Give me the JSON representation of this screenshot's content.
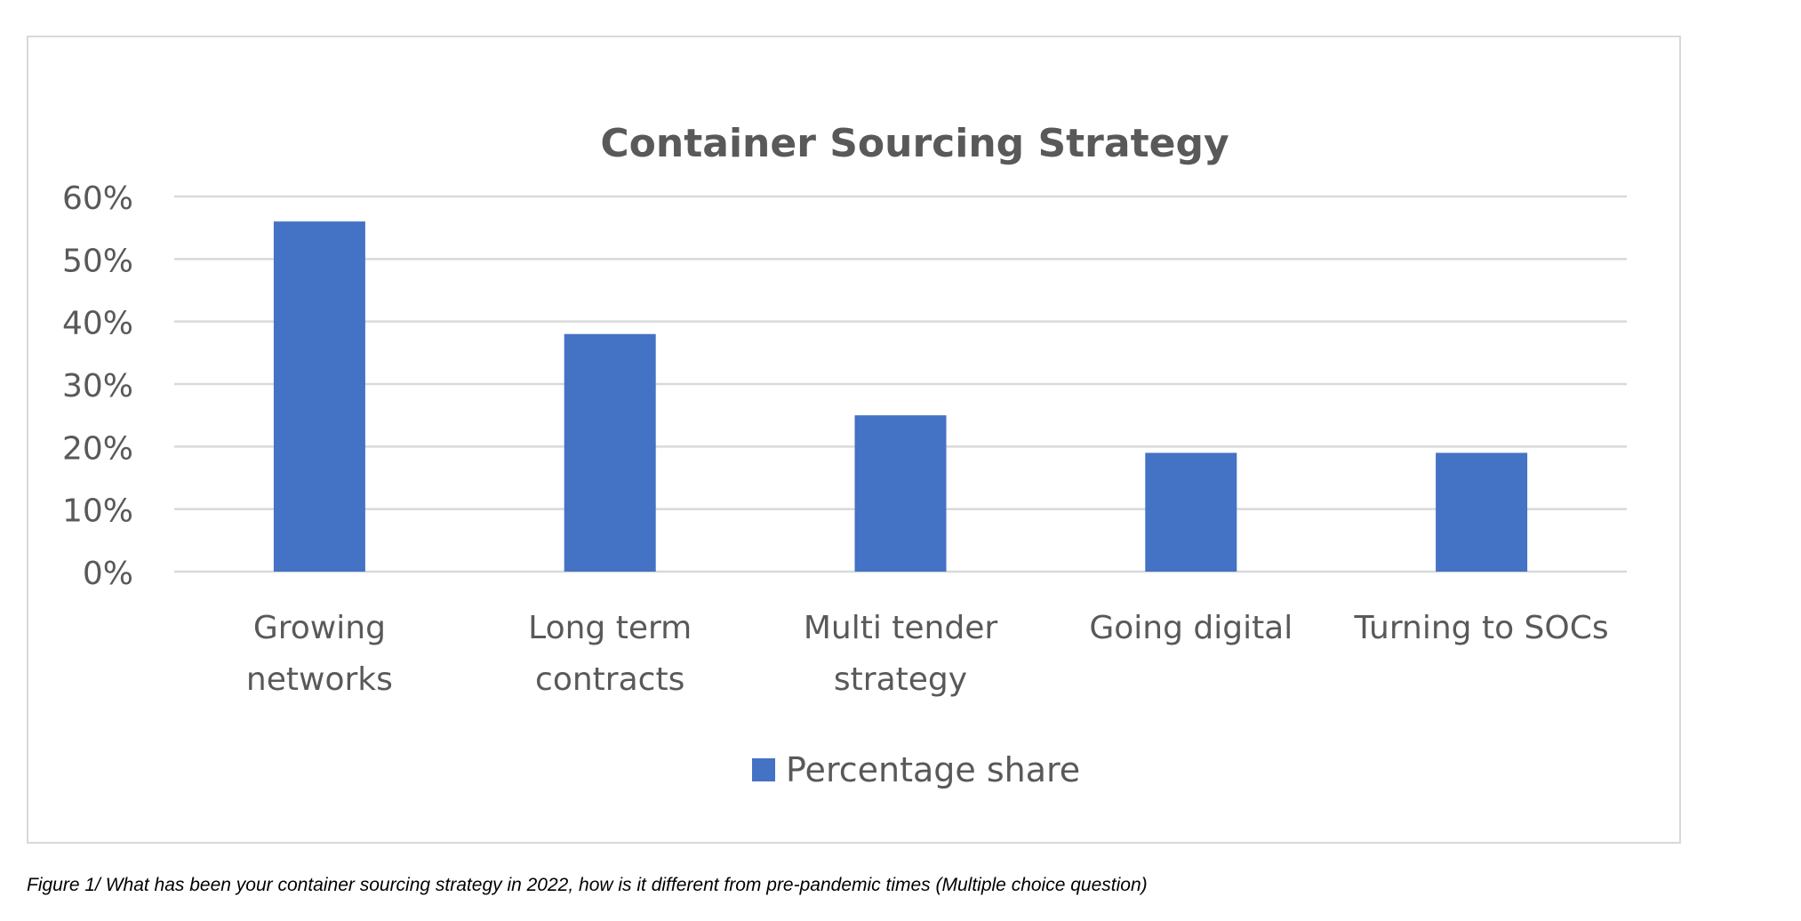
{
  "chart_data": {
    "type": "bar",
    "title": "Container Sourcing Strategy",
    "categories": [
      [
        "Growing",
        "networks"
      ],
      [
        "Long term",
        "contracts"
      ],
      [
        "Multi tender",
        "strategy"
      ],
      [
        "Going digital"
      ],
      [
        "Turning to SOCs"
      ]
    ],
    "series": [
      {
        "name": "Percentage share",
        "values": [
          56,
          38,
          25,
          19,
          19
        ]
      }
    ],
    "ylim": [
      0,
      60
    ],
    "yticks": [
      0,
      10,
      20,
      30,
      40,
      50,
      60
    ],
    "ytick_labels": [
      "0%",
      "10%",
      "20%",
      "30%",
      "40%",
      "50%",
      "60%"
    ],
    "grid": true,
    "legend_position": "bottom-center",
    "colors": {
      "bar": "#4472c4",
      "grid": "#d9d9d9",
      "title": "#595959",
      "axis_text": "#595959"
    }
  },
  "caption": "Figure 1/ What has been your container sourcing strategy in 2022, how is it different from pre-pandemic times (Multiple choice question)"
}
